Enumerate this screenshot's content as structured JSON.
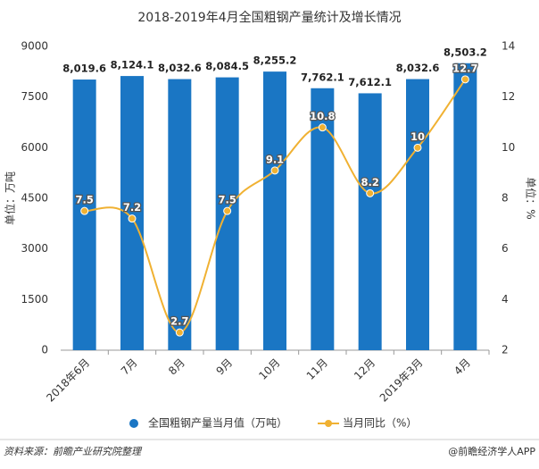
{
  "chart_data": {
    "type": "bar-line",
    "title": "2018-2019年4月全国粗钢产量统计及增长情况",
    "categories": [
      "2018年6月",
      "7月",
      "8月",
      "9月",
      "10月",
      "11月",
      "12月",
      "2019年3月",
      "4月"
    ],
    "series": [
      {
        "name": "全国粗钢产量当月值（万吨）",
        "type": "bar",
        "color": "#1a76c4",
        "values": [
          8019.6,
          8124.1,
          8032.6,
          8084.5,
          8255.2,
          7762.1,
          7612.1,
          8032.6,
          8503.2
        ],
        "value_labels": [
          "8,019.6",
          "8,124.1",
          "8,032.6",
          "8,084.5",
          "8,255.2",
          "7,762.1",
          "7,612.1",
          "8,032.6",
          "8,503.2"
        ]
      },
      {
        "name": "当月同比（%）",
        "type": "line",
        "axis": "y2",
        "color": "#f0b132",
        "values": [
          7.5,
          7.2,
          2.7,
          7.5,
          9.1,
          10.8,
          8.2,
          10,
          12.7
        ]
      }
    ],
    "ylabel": "单位：万吨",
    "y2label": "单位：%",
    "ylim": [
      0,
      9000
    ],
    "yticks": [
      0,
      1500,
      3000,
      4500,
      6000,
      7500,
      9000
    ],
    "y2lim": [
      2,
      14
    ],
    "y2ticks": [
      2,
      4,
      6,
      8,
      10,
      12,
      14
    ],
    "grid": false,
    "source": "资料来源：前瞻产业研究院整理",
    "brand": "@前瞻经济学人APP"
  }
}
